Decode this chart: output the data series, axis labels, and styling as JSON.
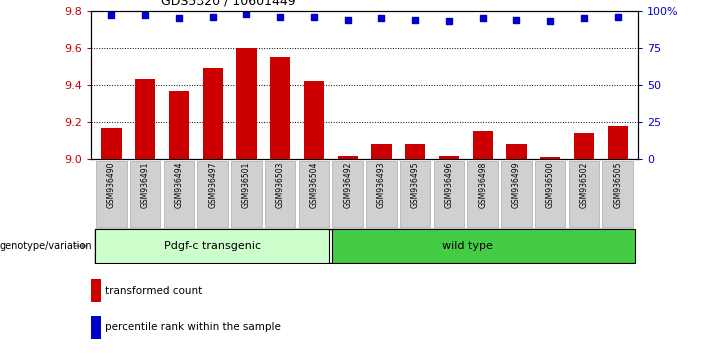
{
  "title": "GDS5320 / 10601449",
  "categories": [
    "GSM936490",
    "GSM936491",
    "GSM936494",
    "GSM936497",
    "GSM936501",
    "GSM936503",
    "GSM936504",
    "GSM936492",
    "GSM936493",
    "GSM936495",
    "GSM936496",
    "GSM936498",
    "GSM936499",
    "GSM936500",
    "GSM936502",
    "GSM936505"
  ],
  "bar_values": [
    9.17,
    9.43,
    9.37,
    9.49,
    9.6,
    9.55,
    9.42,
    9.02,
    9.08,
    9.08,
    9.02,
    9.15,
    9.08,
    9.01,
    9.14,
    9.18
  ],
  "percentile_values": [
    97,
    97,
    95,
    96,
    98,
    96,
    96,
    94,
    95,
    94,
    93,
    95,
    94,
    93,
    95,
    96
  ],
  "bar_color": "#cc0000",
  "dot_color": "#0000cc",
  "ylim_left": [
    9.0,
    9.8
  ],
  "ylim_right": [
    0,
    100
  ],
  "yticks_left": [
    9.0,
    9.2,
    9.4,
    9.6,
    9.8
  ],
  "yticks_right": [
    0,
    25,
    50,
    75,
    100
  ],
  "ytick_labels_right": [
    "0",
    "25",
    "50",
    "75",
    "100%"
  ],
  "group1_label": "Pdgf-c transgenic",
  "group2_label": "wild type",
  "group1_color": "#ccffcc",
  "group2_color": "#44cc44",
  "group1_count": 7,
  "group2_count": 9,
  "legend_bar_label": "transformed count",
  "legend_dot_label": "percentile rank within the sample",
  "genotype_label": "genotype/variation",
  "xlabel_color": "#cc0000",
  "ylabel_right_color": "#0000cc",
  "background_color": "#ffffff",
  "xticklabel_bg": "#d0d0d0",
  "bar_width": 0.6
}
